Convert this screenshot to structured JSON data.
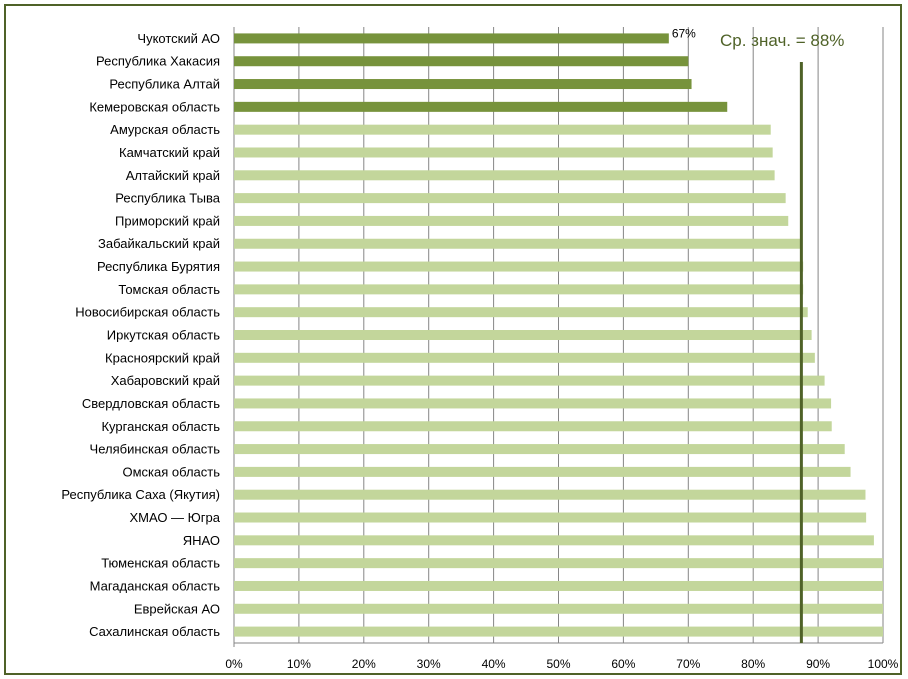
{
  "chart_data": {
    "type": "bar",
    "orientation": "horizontal",
    "categories": [
      "Чукотский АО",
      "Республика Хакасия",
      "Республика Алтай",
      "Кемеровская область",
      "Амурская область",
      "Камчатский край",
      "Алтайский край",
      "Республика Тыва",
      "Приморский край",
      "Забайкальский  край",
      "Республика Бурятия",
      "Томская область",
      "Новосибирская область",
      "Иркутская область",
      "Красноярский край",
      "Хабаровский край",
      "Свердловская область",
      "Курганская область",
      "Челябинская область",
      "Омская область",
      "Республика Саха (Якутия)",
      "ХМАО — Югра",
      "ЯНАО",
      "Тюменская область",
      "Магаданская область",
      "Еврейская АО",
      "Сахалинская область"
    ],
    "values": [
      67,
      70,
      70.5,
      76,
      82.7,
      83,
      83.3,
      85,
      85.4,
      87.3,
      87.7,
      87.7,
      88.4,
      89,
      89.5,
      91,
      92,
      92.1,
      94.1,
      95,
      97.3,
      97.4,
      98.6,
      100,
      100,
      100,
      100
    ],
    "highlight_count": 4,
    "colors": {
      "highlight": "#77933c",
      "normal": "#c3d69b",
      "avg_line": "#4f6228",
      "avg_text": "#4f6228",
      "border": "#4f6228",
      "grid": "#868686"
    },
    "data_labels": [
      {
        "index": 0,
        "text": "67%"
      }
    ],
    "xlim": [
      0,
      100
    ],
    "x_ticks": [
      "0%",
      "10%",
      "20%",
      "30%",
      "40%",
      "50%",
      "60%",
      "70%",
      "80%",
      "90%",
      "100%"
    ],
    "x_tick_values": [
      0,
      10,
      20,
      30,
      40,
      50,
      60,
      70,
      80,
      90,
      100
    ],
    "average": {
      "value": 87.5,
      "label": "Ср. знач. = 88%"
    },
    "grid": true,
    "legend": "none"
  }
}
